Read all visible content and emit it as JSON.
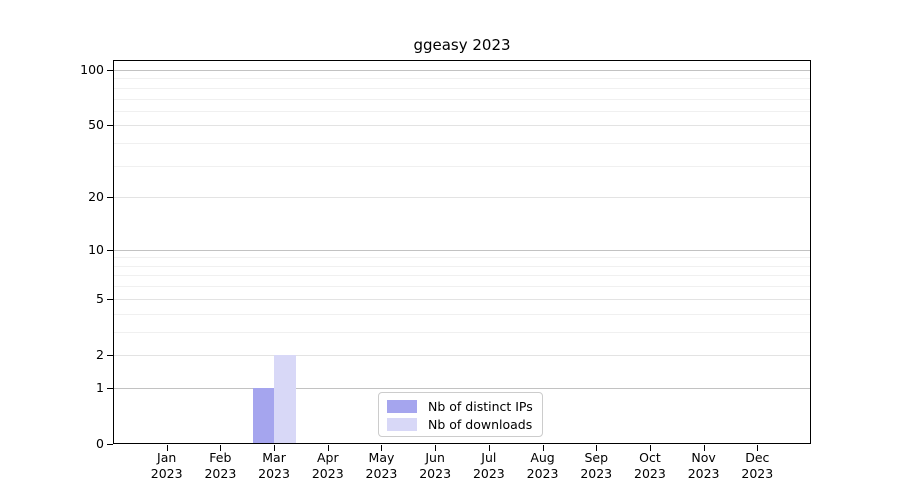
{
  "title": "ggeasy 2023",
  "chart_data": {
    "type": "bar",
    "title": "ggeasy 2023",
    "categories": [
      {
        "month": "Jan",
        "year": "2023"
      },
      {
        "month": "Feb",
        "year": "2023"
      },
      {
        "month": "Mar",
        "year": "2023"
      },
      {
        "month": "Apr",
        "year": "2023"
      },
      {
        "month": "May",
        "year": "2023"
      },
      {
        "month": "Jun",
        "year": "2023"
      },
      {
        "month": "Jul",
        "year": "2023"
      },
      {
        "month": "Aug",
        "year": "2023"
      },
      {
        "month": "Sep",
        "year": "2023"
      },
      {
        "month": "Oct",
        "year": "2023"
      },
      {
        "month": "Nov",
        "year": "2023"
      },
      {
        "month": "Dec",
        "year": "2023"
      }
    ],
    "series": [
      {
        "name": "Nb of distinct IPs",
        "color": "#a5a5ee",
        "values": [
          0,
          0,
          1,
          0,
          0,
          0,
          0,
          0,
          0,
          0,
          0,
          0
        ]
      },
      {
        "name": "Nb of downloads",
        "color": "#d8d8f7",
        "values": [
          0,
          0,
          2,
          0,
          0,
          0,
          0,
          0,
          0,
          0,
          0,
          0
        ]
      }
    ],
    "xlabel": "",
    "ylabel": "",
    "y_axis": {
      "scale": "log1p",
      "ticks": [
        0,
        1,
        2,
        5,
        10,
        20,
        50,
        100
      ],
      "decade_ticks": [
        1,
        10,
        100
      ],
      "minor_gridline_values": [
        3,
        4,
        6,
        7,
        8,
        9,
        30,
        40,
        60,
        70,
        80,
        90
      ],
      "ylim": [
        0,
        113
      ]
    },
    "grid": "horizontal major+minor",
    "legend_position": "lower center"
  }
}
